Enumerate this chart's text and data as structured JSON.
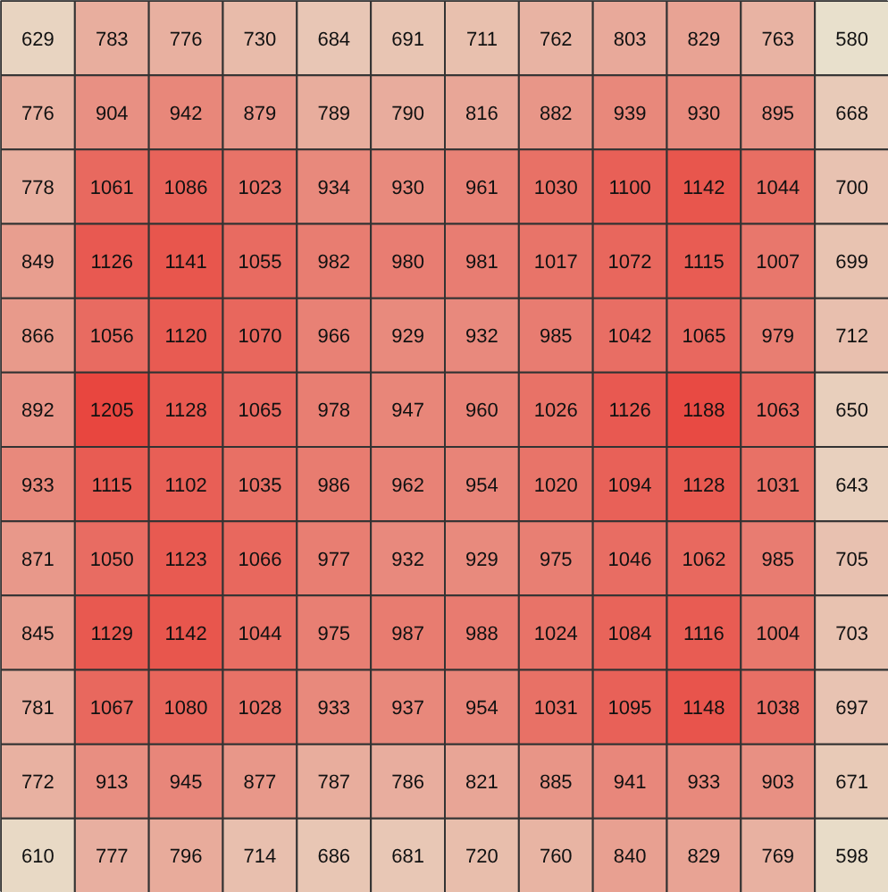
{
  "chart_data": {
    "type": "heatmap",
    "categories": [
      null,
      null,
      null,
      null,
      null,
      null,
      null,
      null,
      null,
      null,
      null,
      null
    ],
    "y_categories": [
      null,
      null,
      null,
      null,
      null,
      null,
      null,
      null,
      null,
      null,
      null,
      null
    ],
    "colors": [
      "#e8e0cc",
      "#e8463f"
    ],
    "data_labels": true,
    "cells": [
      [
        629,
        783,
        776,
        730,
        684,
        691,
        711,
        762,
        803,
        829,
        763,
        580
      ],
      [
        776,
        904,
        942,
        879,
        789,
        790,
        816,
        882,
        939,
        930,
        895,
        668
      ],
      [
        778,
        1061,
        1086,
        1023,
        934,
        930,
        961,
        1030,
        1100,
        1142,
        1044,
        700
      ],
      [
        849,
        1126,
        1141,
        1055,
        982,
        980,
        981,
        1017,
        1072,
        1115,
        1007,
        699
      ],
      [
        866,
        1056,
        1120,
        1070,
        966,
        929,
        932,
        985,
        1042,
        1065,
        979,
        712
      ],
      [
        892,
        1205,
        1128,
        1065,
        978,
        947,
        960,
        1026,
        1126,
        1188,
        1063,
        650
      ],
      [
        933,
        1115,
        1102,
        1035,
        986,
        962,
        954,
        1020,
        1094,
        1128,
        1031,
        643
      ],
      [
        871,
        1050,
        1123,
        1066,
        977,
        932,
        929,
        975,
        1046,
        1062,
        985,
        705
      ],
      [
        845,
        1129,
        1142,
        1044,
        975,
        987,
        988,
        1024,
        1084,
        1116,
        1004,
        703
      ],
      [
        781,
        1067,
        1080,
        1028,
        933,
        937,
        954,
        1031,
        1095,
        1148,
        1038,
        697
      ],
      [
        772,
        913,
        945,
        877,
        787,
        786,
        821,
        885,
        941,
        933,
        903,
        671
      ],
      [
        610,
        777,
        796,
        714,
        686,
        681,
        720,
        760,
        840,
        829,
        769,
        598
      ]
    ]
  }
}
